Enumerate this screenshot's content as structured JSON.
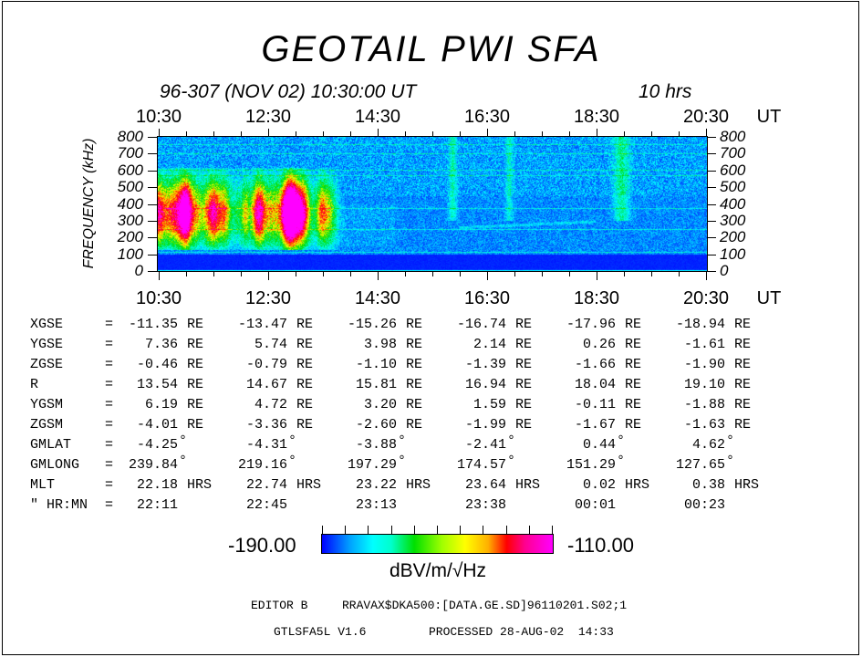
{
  "title": "GEOTAIL PWI SFA",
  "subtitle": "96-307 (NOV 02) 10:30:00 UT",
  "duration": "10 hrs",
  "chart_data": {
    "type": "heatmap",
    "title": "GEOTAIL PWI SFA",
    "xlabel": "UT",
    "ylabel": "FREQUENCY (kHz)",
    "x_tick_labels": [
      "10:30",
      "12:30",
      "14:30",
      "16:30",
      "18:30",
      "20:30"
    ],
    "x_unit": "UT",
    "xlim": [
      "10:30",
      "20:30"
    ],
    "y_tick_labels": [
      "800",
      "700",
      "600",
      "500",
      "400",
      "300",
      "200",
      "100",
      "0"
    ],
    "ylim": [
      0,
      800
    ],
    "colorbar": {
      "min_label": "-190.00",
      "max_label": "-110.00",
      "min": -190,
      "max": -110,
      "unit": "dBV/m/√Hz",
      "colors": [
        "#0000ff",
        "#00ffff",
        "#00e000",
        "#ffff00",
        "#ff0000",
        "#ff00ff"
      ]
    }
  },
  "ephemeris": {
    "rows": [
      {
        "label": "XGSE",
        "values": [
          "-11.35",
          "-13.47",
          "-15.26",
          "-16.74",
          "-17.96",
          "-18.94"
        ],
        "unit": "RE"
      },
      {
        "label": "YGSE",
        "values": [
          "7.36",
          "5.74",
          "3.98",
          "2.14",
          "0.26",
          "-1.61"
        ],
        "unit": "RE"
      },
      {
        "label": "ZGSE",
        "values": [
          "-0.46",
          "-0.79",
          "-1.10",
          "-1.39",
          "-1.66",
          "-1.90"
        ],
        "unit": "RE"
      },
      {
        "label": "R",
        "values": [
          "13.54",
          "14.67",
          "15.81",
          "16.94",
          "18.04",
          "19.10"
        ],
        "unit": "RE"
      },
      {
        "label": "YGSM",
        "values": [
          "6.19",
          "4.72",
          "3.20",
          "1.59",
          "-0.11",
          "-1.88"
        ],
        "unit": "RE"
      },
      {
        "label": "ZGSM",
        "values": [
          "-4.01",
          "-3.36",
          "-2.60",
          "-1.99",
          "-1.67",
          "-1.63"
        ],
        "unit": "RE"
      },
      {
        "label": "GMLAT",
        "values": [
          "-4.25",
          "-4.31",
          "-3.88",
          "-2.41",
          "0.44",
          "4.62"
        ],
        "unit": "°"
      },
      {
        "label": "GMLONG",
        "values": [
          "239.84",
          "219.16",
          "197.29",
          "174.57",
          "151.29",
          "127.65"
        ],
        "unit": "°"
      },
      {
        "label": "MLT",
        "values": [
          "22.18",
          "22.74",
          "23.22",
          "23.64",
          "0.02",
          "0.38"
        ],
        "unit": "HRS"
      },
      {
        "label": "\" HR:MN",
        "values": [
          "22:11",
          "22:45",
          "23:13",
          "23:38",
          "00:01",
          "00:23"
        ],
        "unit": ""
      }
    ],
    "equals": "="
  },
  "footer": {
    "editor": "EDITOR B",
    "file": "RRAVAX$DKA500:[DATA.GE.SD]96110201.S02;1",
    "program": "GTLSFA5L V1.6",
    "processed": "PROCESSED 28-AUG-02  14:33"
  }
}
